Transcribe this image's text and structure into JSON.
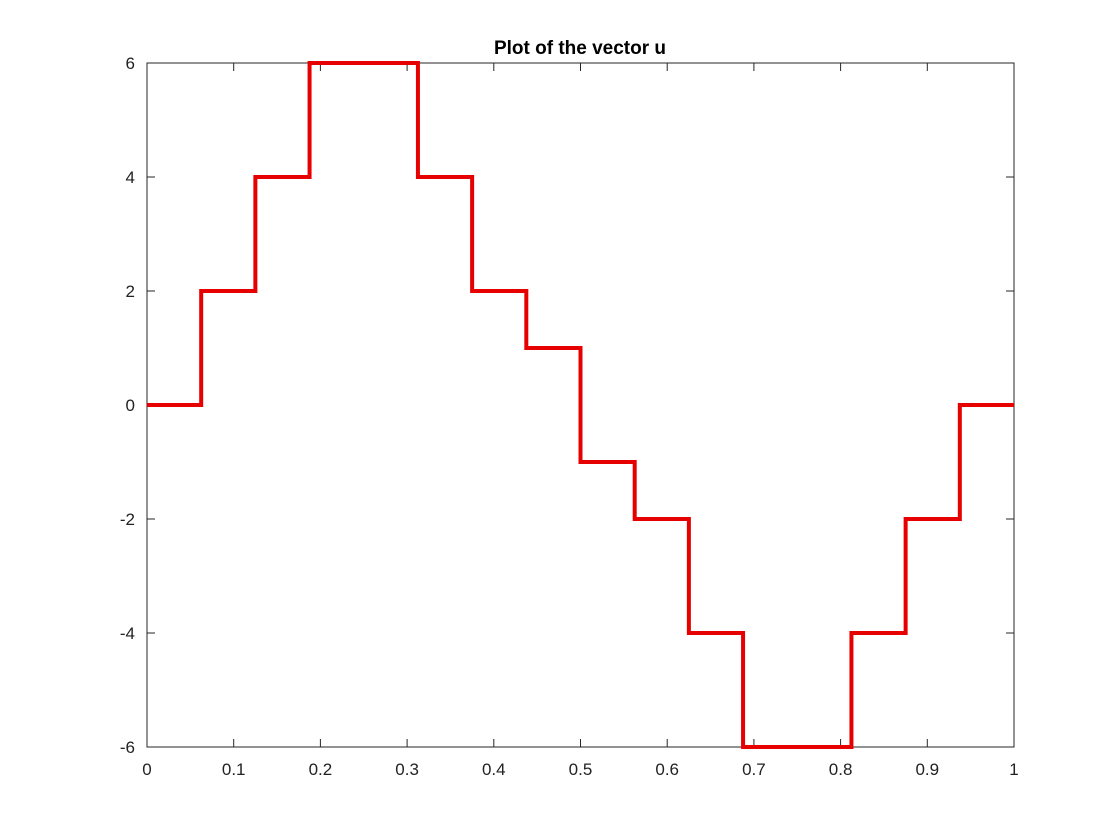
{
  "chart_data": {
    "type": "line",
    "style": "stairs",
    "title": "Plot of the vector u",
    "xlabel": "",
    "ylabel": "",
    "xlim": [
      0,
      1
    ],
    "ylim": [
      -6,
      6
    ],
    "x_ticks": [
      0,
      0.1,
      0.2,
      0.3,
      0.4,
      0.5,
      0.6,
      0.7,
      0.8,
      0.9,
      1
    ],
    "x_tick_labels": [
      "0",
      "0.1",
      "0.2",
      "0.3",
      "0.4",
      "0.5",
      "0.6",
      "0.7",
      "0.8",
      "0.9",
      "1"
    ],
    "y_ticks": [
      -6,
      -4,
      -2,
      0,
      2,
      4,
      6
    ],
    "y_tick_labels": [
      "-6",
      "-4",
      "-2",
      "0",
      "2",
      "4",
      "6"
    ],
    "grid": false,
    "series": [
      {
        "color": "#e60000",
        "x": [
          0,
          0.0625,
          0.125,
          0.1875,
          0.25,
          0.3125,
          0.375,
          0.4375,
          0.5,
          0.5625,
          0.625,
          0.6875,
          0.75,
          0.8125,
          0.875,
          0.9375,
          1
        ],
        "values": [
          0,
          2,
          4,
          6,
          6,
          4,
          2,
          1,
          -1,
          -2,
          -4,
          -6,
          -6,
          -4,
          -2,
          0,
          0
        ]
      }
    ]
  }
}
